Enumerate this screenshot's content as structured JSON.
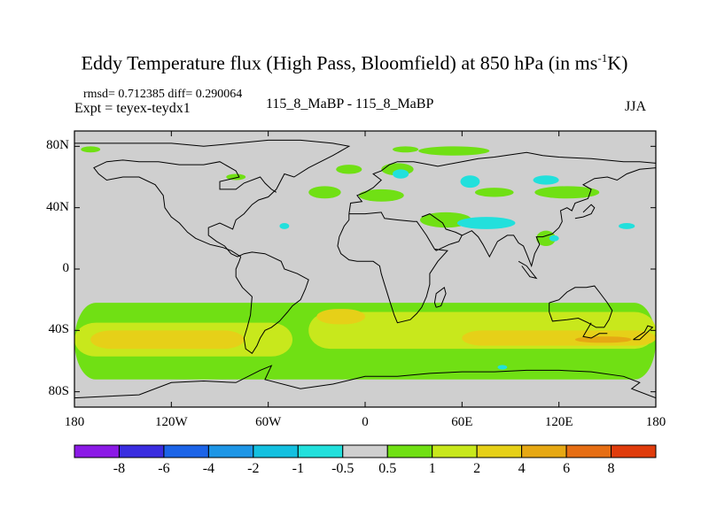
{
  "chart_data": {
    "type": "heatmap",
    "title": "Eddy Temperature flux (High Pass, Bloomfield) at 850 hPa (in ms",
    "title_unit_sup": "-1",
    "title_unit_end": "K)",
    "stats_text": "rmsd= 0.712385  diff= 0.290064",
    "expt_text": "Expt = teyex-teydx1",
    "center_text": "115_8_MaBP - 115_8_MaBP",
    "season_text": "JJA",
    "lon_range": [
      -180,
      180
    ],
    "lat_range": [
      -90,
      90
    ],
    "lat_ticks": [
      {
        "value": 80,
        "label": "80N"
      },
      {
        "value": 40,
        "label": "40N"
      },
      {
        "value": 0,
        "label": "0"
      },
      {
        "value": -40,
        "label": "40S"
      },
      {
        "value": -80,
        "label": "80S"
      }
    ],
    "lon_ticks": [
      {
        "value": -180,
        "label": "180"
      },
      {
        "value": -120,
        "label": "120W"
      },
      {
        "value": -60,
        "label": "60W"
      },
      {
        "value": 0,
        "label": "0"
      },
      {
        "value": 60,
        "label": "60E"
      },
      {
        "value": 120,
        "label": "120E"
      },
      {
        "value": 180,
        "label": "180"
      }
    ],
    "colorbar": {
      "colors": [
        "#8b1ae6",
        "#3a2de0",
        "#1c64e8",
        "#1e96e6",
        "#14c0e0",
        "#22e0dc",
        "#cfcfcf",
        "#70e014",
        "#c8e81c",
        "#e6d018",
        "#e6a814",
        "#e66e14",
        "#e03c0c"
      ],
      "labels": [
        "-8",
        "-6",
        "-4",
        "-2",
        "-1",
        "-0.5",
        "0.5",
        "1",
        "2",
        "4",
        "6",
        "8"
      ]
    },
    "field_bands": [
      {
        "level": "0.5 to 1",
        "color": "#70e014",
        "lon": [
          -180,
          180
        ],
        "lat": [
          -72,
          -22
        ]
      },
      {
        "level": "1 to 2",
        "color": "#c8e81c",
        "lon": [
          -180,
          -45
        ],
        "lat": [
          -57,
          -35
        ]
      },
      {
        "level": "1 to 2",
        "color": "#c8e81c",
        "lon": [
          -35,
          180
        ],
        "lat": [
          -52,
          -28
        ]
      },
      {
        "level": "2 to 4",
        "color": "#e6d018",
        "lon": [
          -170,
          -75
        ],
        "lat": [
          -52,
          -40
        ]
      },
      {
        "level": "2 to 4",
        "color": "#e6d018",
        "lon": [
          -30,
          0
        ],
        "lat": [
          -36,
          -26
        ]
      },
      {
        "level": "2 to 4",
        "color": "#e6d018",
        "lon": [
          60,
          180
        ],
        "lat": [
          -50,
          -40
        ]
      },
      {
        "level": "4 to 6",
        "color": "#e6a814",
        "lon": [
          130,
          165
        ],
        "lat": [
          -48,
          -44
        ]
      }
    ],
    "positive_blobs": [
      {
        "lon": 55,
        "lat": 77,
        "rx": 22,
        "ry": 3
      },
      {
        "lon": 25,
        "lat": 78,
        "rx": 8,
        "ry": 2
      },
      {
        "lon": -10,
        "lat": 65,
        "rx": 8,
        "ry": 3
      },
      {
        "lon": 20,
        "lat": 65,
        "rx": 10,
        "ry": 4
      },
      {
        "lon": -25,
        "lat": 50,
        "rx": 10,
        "ry": 4
      },
      {
        "lon": 10,
        "lat": 48,
        "rx": 14,
        "ry": 4
      },
      {
        "lon": 80,
        "lat": 50,
        "rx": 12,
        "ry": 3
      },
      {
        "lon": 125,
        "lat": 50,
        "rx": 20,
        "ry": 4
      },
      {
        "lon": 50,
        "lat": 32,
        "rx": 16,
        "ry": 5
      },
      {
        "lon": 112,
        "lat": 20,
        "rx": 6,
        "ry": 5
      },
      {
        "lon": -170,
        "lat": 78,
        "rx": 6,
        "ry": 2
      },
      {
        "lon": -80,
        "lat": 60,
        "rx": 6,
        "ry": 2
      }
    ],
    "negative_blobs": [
      {
        "lon": 22,
        "lat": 62,
        "rx": 5,
        "ry": 3
      },
      {
        "lon": 65,
        "lat": 57,
        "rx": 6,
        "ry": 4
      },
      {
        "lon": 75,
        "lat": 30,
        "rx": 18,
        "ry": 4
      },
      {
        "lon": 112,
        "lat": 58,
        "rx": 8,
        "ry": 3
      },
      {
        "lon": -50,
        "lat": 28,
        "rx": 3,
        "ry": 2
      },
      {
        "lon": 162,
        "lat": 28,
        "rx": 5,
        "ry": 2
      },
      {
        "lon": 117,
        "lat": 20,
        "rx": 3,
        "ry": 2
      },
      {
        "lon": 85,
        "lat": -64,
        "rx": 3,
        "ry": 1.5
      }
    ],
    "coastlines": [
      [
        [
          -180,
          82
        ],
        [
          -160,
          82
        ],
        [
          -120,
          82
        ],
        [
          -100,
          80
        ],
        [
          -80,
          82
        ],
        [
          -60,
          84
        ],
        [
          -40,
          84
        ],
        [
          -20,
          82
        ],
        [
          -10,
          80
        ],
        [
          -20,
          74
        ],
        [
          -35,
          66
        ],
        [
          -44,
          60
        ],
        [
          -50,
          62
        ],
        [
          -55,
          52
        ],
        [
          -60,
          47
        ],
        [
          -66,
          45
        ],
        [
          -70,
          42
        ],
        [
          -75,
          36
        ],
        [
          -80,
          32
        ],
        [
          -82,
          26
        ],
        [
          -90,
          30
        ],
        [
          -97,
          27
        ],
        [
          -97,
          22
        ],
        [
          -92,
          18
        ],
        [
          -87,
          15
        ],
        [
          -83,
          10
        ],
        [
          -79,
          8
        ],
        [
          -75,
          10
        ],
        [
          -70,
          11
        ],
        [
          -62,
          10
        ],
        [
          -52,
          5
        ],
        [
          -50,
          0
        ],
        [
          -42,
          -3
        ],
        [
          -35,
          -7
        ],
        [
          -37,
          -13
        ],
        [
          -40,
          -20
        ],
        [
          -45,
          -24
        ],
        [
          -48,
          -28
        ],
        [
          -53,
          -34
        ],
        [
          -58,
          -38
        ],
        [
          -62,
          -40
        ],
        [
          -65,
          -45
        ],
        [
          -67,
          -50
        ],
        [
          -70,
          -55
        ],
        [
          -74,
          -52
        ],
        [
          -75,
          -45
        ],
        [
          -73,
          -38
        ],
        [
          -71,
          -30
        ],
        [
          -70,
          -18
        ],
        [
          -76,
          -12
        ],
        [
          -80,
          -5
        ],
        [
          -80,
          0
        ],
        [
          -78,
          5
        ],
        [
          -77,
          8
        ]
      ],
      [
        [
          -77,
          8
        ],
        [
          -83,
          12
        ],
        [
          -88,
          14
        ],
        [
          -92,
          15
        ],
        [
          -96,
          16
        ],
        [
          -105,
          20
        ],
        [
          -110,
          24
        ],
        [
          -115,
          30
        ],
        [
          -120,
          34
        ],
        [
          -124,
          40
        ],
        [
          -125,
          48
        ],
        [
          -130,
          55
        ],
        [
          -140,
          60
        ],
        [
          -150,
          60
        ],
        [
          -160,
          58
        ],
        [
          -165,
          62
        ],
        [
          -168,
          66
        ],
        [
          -160,
          70
        ],
        [
          -150,
          71
        ],
        [
          -140,
          70
        ],
        [
          -128,
          70
        ],
        [
          -115,
          68
        ],
        [
          -100,
          68
        ],
        [
          -90,
          70
        ],
        [
          -80,
          64
        ],
        [
          -78,
          60
        ],
        [
          -90,
          57
        ],
        [
          -90,
          52
        ],
        [
          -80,
          52
        ],
        [
          -75,
          56
        ],
        [
          -65,
          60
        ],
        [
          -62,
          56
        ],
        [
          -58,
          52
        ],
        [
          -55,
          50
        ]
      ],
      [
        [
          -10,
          36
        ],
        [
          -9,
          43
        ],
        [
          -2,
          44
        ],
        [
          -5,
          48
        ],
        [
          0,
          50
        ],
        [
          5,
          53
        ],
        [
          8,
          56
        ],
        [
          10,
          58
        ],
        [
          5,
          62
        ],
        [
          10,
          64
        ],
        [
          15,
          68
        ],
        [
          20,
          70
        ],
        [
          30,
          70
        ],
        [
          40,
          68
        ],
        [
          45,
          67
        ],
        [
          60,
          70
        ],
        [
          70,
          72
        ],
        [
          80,
          73
        ],
        [
          100,
          76
        ],
        [
          110,
          74
        ],
        [
          120,
          73
        ],
        [
          140,
          72
        ],
        [
          160,
          70
        ],
        [
          170,
          70
        ],
        [
          180,
          69
        ]
      ],
      [
        [
          -10,
          36
        ],
        [
          0,
          36
        ],
        [
          10,
          37
        ],
        [
          12,
          33
        ],
        [
          20,
          32
        ],
        [
          30,
          31
        ],
        [
          32,
          31
        ],
        [
          34,
          28
        ],
        [
          38,
          22
        ],
        [
          43,
          13
        ],
        [
          51,
          12
        ],
        [
          45,
          5
        ],
        [
          40,
          -3
        ],
        [
          40,
          -10
        ],
        [
          38,
          -18
        ],
        [
          35,
          -25
        ],
        [
          32,
          -29
        ],
        [
          28,
          -33
        ],
        [
          20,
          -35
        ],
        [
          18,
          -30
        ],
        [
          15,
          -20
        ],
        [
          12,
          -10
        ],
        [
          10,
          -3
        ],
        [
          9,
          2
        ],
        [
          5,
          5
        ],
        [
          -5,
          5
        ],
        [
          -10,
          6
        ],
        [
          -15,
          10
        ],
        [
          -17,
          15
        ],
        [
          -16,
          21
        ],
        [
          -13,
          28
        ],
        [
          -10,
          32
        ],
        [
          -10,
          36
        ]
      ],
      [
        [
          35,
          34
        ],
        [
          40,
          36
        ],
        [
          48,
          30
        ],
        [
          50,
          26
        ],
        [
          56,
          24
        ],
        [
          60,
          22
        ],
        [
          58,
          18
        ],
        [
          52,
          16
        ],
        [
          44,
          12
        ],
        [
          43,
          13
        ]
      ],
      [
        [
          60,
          22
        ],
        [
          66,
          25
        ],
        [
          70,
          21
        ],
        [
          73,
          16
        ],
        [
          77,
          8
        ],
        [
          80,
          14
        ],
        [
          82,
          18
        ],
        [
          88,
          22
        ],
        [
          92,
          22
        ],
        [
          95,
          17
        ],
        [
          98,
          15
        ],
        [
          100,
          10
        ],
        [
          103,
          2
        ],
        [
          105,
          10
        ],
        [
          108,
          16
        ],
        [
          106,
          21
        ],
        [
          110,
          21
        ],
        [
          116,
          23
        ],
        [
          120,
          27
        ],
        [
          122,
          31
        ],
        [
          121,
          38
        ],
        [
          125,
          40
        ],
        [
          128,
          38
        ],
        [
          130,
          43
        ],
        [
          138,
          46
        ],
        [
          140,
          52
        ],
        [
          135,
          55
        ],
        [
          142,
          59
        ],
        [
          150,
          60
        ],
        [
          156,
          58
        ],
        [
          162,
          62
        ],
        [
          170,
          65
        ],
        [
          180,
          66
        ]
      ],
      [
        [
          114,
          -22
        ],
        [
          114,
          -28
        ],
        [
          116,
          -34
        ],
        [
          125,
          -33
        ],
        [
          132,
          -32
        ],
        [
          138,
          -35
        ],
        [
          143,
          -38
        ],
        [
          148,
          -38
        ],
        [
          151,
          -33
        ],
        [
          153,
          -27
        ],
        [
          150,
          -22
        ],
        [
          145,
          -15
        ],
        [
          142,
          -11
        ],
        [
          137,
          -12
        ],
        [
          130,
          -12
        ],
        [
          125,
          -15
        ],
        [
          120,
          -20
        ],
        [
          114,
          -22
        ]
      ],
      [
        [
          -180,
          -84
        ],
        [
          -140,
          -82
        ],
        [
          -120,
          -74
        ],
        [
          -100,
          -73
        ],
        [
          -80,
          -74
        ],
        [
          -65,
          -66
        ],
        [
          -58,
          -63
        ],
        [
          -62,
          -72
        ],
        [
          -40,
          -78
        ],
        [
          -20,
          -75
        ],
        [
          0,
          -70
        ],
        [
          20,
          -70
        ],
        [
          40,
          -68
        ],
        [
          60,
          -67
        ],
        [
          80,
          -67
        ],
        [
          100,
          -66
        ],
        [
          120,
          -66
        ],
        [
          140,
          -67
        ],
        [
          160,
          -70
        ],
        [
          170,
          -74
        ],
        [
          165,
          -78
        ],
        [
          180,
          -84
        ]
      ],
      [
        [
          140,
          -35
        ],
        [
          135,
          -44
        ],
        [
          140,
          -45
        ],
        [
          145,
          -42
        ],
        [
          150,
          -42
        ]
      ],
      [
        [
          166,
          -46
        ],
        [
          173,
          -41
        ],
        [
          175,
          -37
        ],
        [
          178,
          -38
        ],
        [
          174,
          -42
        ],
        [
          170,
          -46
        ],
        [
          166,
          -46
        ]
      ],
      [
        [
          44,
          -25
        ],
        [
          47,
          -24
        ],
        [
          50,
          -16
        ],
        [
          49,
          -12
        ],
        [
          44,
          -16
        ],
        [
          43,
          -22
        ],
        [
          44,
          -25
        ]
      ],
      [
        [
          95,
          5
        ],
        [
          100,
          2
        ],
        [
          106,
          -6
        ],
        [
          102,
          -5
        ],
        [
          97,
          2
        ]
      ],
      [
        [
          130,
          33
        ],
        [
          135,
          34
        ],
        [
          140,
          36
        ],
        [
          142,
          40
        ],
        [
          140,
          42
        ],
        [
          135,
          37
        ]
      ]
    ]
  }
}
